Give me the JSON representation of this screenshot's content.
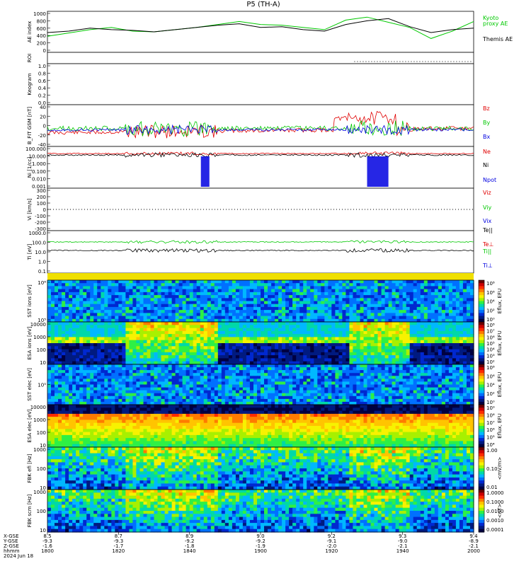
{
  "title": "P5 (TH-A)",
  "colorbar_spec": [
    "#6a0000",
    "#cc0000",
    "#ff2a00",
    "#ff7a00",
    "#ffc400",
    "#f7f200",
    "#a8f000",
    "#2ef045",
    "#00d8a8",
    "#00b8ff",
    "#0070ff",
    "#0028d0",
    "#001a80",
    "#000040"
  ],
  "chart_data": [
    {
      "panel": "ae",
      "type": "line",
      "ylabel": "AE index",
      "yticks": [
        "1000",
        "800",
        "600",
        "400",
        "200",
        "0"
      ],
      "ylim": [
        0,
        1000
      ],
      "series": [
        {
          "name": "Kyoto proxy AE",
          "color": "#00c800",
          "x": [
            0,
            0.05,
            0.1,
            0.15,
            0.2,
            0.25,
            0.3,
            0.35,
            0.4,
            0.45,
            0.5,
            0.55,
            0.6,
            0.65,
            0.7,
            0.75,
            0.8,
            0.85,
            0.9,
            0.95,
            1.0
          ],
          "y": [
            380,
            470,
            560,
            620,
            520,
            500,
            560,
            620,
            700,
            780,
            700,
            680,
            620,
            560,
            820,
            900,
            760,
            620,
            320,
            520,
            780
          ]
        },
        {
          "name": "Themis AE",
          "color": "#000000",
          "x": [
            0,
            0.05,
            0.1,
            0.15,
            0.2,
            0.25,
            0.3,
            0.35,
            0.4,
            0.45,
            0.5,
            0.55,
            0.6,
            0.65,
            0.7,
            0.75,
            0.8,
            0.85,
            0.9,
            0.95,
            1.0
          ],
          "y": [
            480,
            520,
            600,
            560,
            540,
            500,
            560,
            620,
            680,
            720,
            620,
            640,
            560,
            520,
            700,
            800,
            860,
            640,
            480,
            560,
            600
          ]
        }
      ],
      "legend_right": [
        {
          "text": "Kyoto",
          "color": "#00c800"
        },
        {
          "text": "proxy AE",
          "color": "#00c800"
        },
        {
          "text": "Themis AE",
          "color": "#000000"
        }
      ]
    },
    {
      "panel": "roi",
      "type": "line",
      "ylabel": "ROI",
      "yticks": [],
      "dotted_from": 0.72
    },
    {
      "panel": "keogram",
      "type": "line",
      "ylabel": "Keogram",
      "yticks": [
        "1.0",
        "0.8",
        "0.6",
        "0.4",
        "0.2",
        "0.0"
      ],
      "ylim": [
        0,
        1
      ]
    },
    {
      "panel": "bfield",
      "type": "line",
      "ylabel": "B_FIT GSM [nT]",
      "yticks": [
        "40",
        "20",
        "0",
        "-20",
        "-40"
      ],
      "ylim": [
        -40,
        40
      ],
      "series": [
        {
          "name": "Bz",
          "color": "#e00000"
        },
        {
          "name": "By",
          "color": "#00c800"
        },
        {
          "name": "Bx",
          "color": "#0000e0"
        }
      ]
    },
    {
      "panel": "density",
      "type": "line",
      "ylabel": "Ni [1/cc]",
      "yticks": [
        "100.000",
        "10.000",
        "1.000",
        "0.100",
        "0.010",
        "0.001"
      ],
      "series": [
        {
          "name": "Ne",
          "color": "#e00000"
        },
        {
          "name": "Ni",
          "color": "#000000"
        },
        {
          "name": "Npot",
          "color": "#0000e0"
        }
      ]
    },
    {
      "panel": "velocity",
      "type": "line",
      "ylabel": "Vi [km/s]",
      "yticks": [
        "300",
        "200",
        "100",
        "0",
        "-100",
        "-200",
        "-300"
      ],
      "ylim": [
        -300,
        300
      ],
      "series": [
        {
          "name": "Viz",
          "color": "#e00000"
        },
        {
          "name": "Viy",
          "color": "#00c800"
        },
        {
          "name": "Vix",
          "color": "#0000e0"
        }
      ]
    },
    {
      "panel": "temperature",
      "type": "line",
      "ylabel": "Ti [eV]",
      "yticks": [
        "1000.0",
        "100.0",
        "10.0",
        "1.0",
        "0.1"
      ],
      "series": [
        {
          "name": "Te||",
          "color": "#000000"
        },
        {
          "name": "Te⊥",
          "color": "#e00000"
        },
        {
          "name": "Ti||",
          "color": "#00c800"
        },
        {
          "name": "Ti⊥",
          "color": "#0000e0"
        }
      ]
    },
    {
      "panel": "sst_i",
      "type": "heatmap",
      "ylabel": "SST ions [eV]",
      "yticks": [
        "10⁶",
        "10⁵"
      ],
      "cblabel": "Eflux, EFU",
      "cbticks": [
        "10⁸",
        "10⁶",
        "10⁴",
        "10²",
        "10⁰"
      ]
    },
    {
      "panel": "esa_i",
      "type": "heatmap",
      "ylabel": "ESA ions [eV]",
      "yticks": [
        "10000",
        "1000",
        "100",
        "10"
      ],
      "cblabel": "Eflux, EFU",
      "cbticks": [
        "10⁸",
        "10⁷",
        "10⁶",
        "10⁵",
        "10⁴",
        "10³",
        "10²"
      ]
    },
    {
      "panel": "sst_e",
      "type": "heatmap",
      "ylabel": "SST elec [eV]",
      "yticks": [
        "10⁵"
      ],
      "cblabel": "Eflux, EFU",
      "cbticks": [
        "10⁸",
        "10⁶",
        "10⁴",
        "10²",
        "10⁰"
      ]
    },
    {
      "panel": "esa_e",
      "type": "heatmap",
      "ylabel": "ESA elec [eV]",
      "yticks": [
        "10000",
        "1000",
        "100",
        "10"
      ],
      "cblabel": "Eflux, EFU",
      "cbticks": [
        "10⁹",
        "10⁸",
        "10⁷",
        "10⁶",
        "10⁵",
        "10⁴"
      ]
    },
    {
      "panel": "fbk_e",
      "type": "heatmap",
      "ylabel": "FBK efi [Hz]",
      "yticks": [
        "1000",
        "100",
        "10"
      ],
      "cblabel": "<mV/m>",
      "cbticks": [
        "1.00",
        "0.10",
        "0.01"
      ]
    },
    {
      "panel": "fbk_b",
      "type": "heatmap",
      "ylabel": "FBK scm [Hz]",
      "yticks": [
        "1000",
        "100",
        "10"
      ],
      "cblabel": "<nT>",
      "cbticks": [
        "1.0000",
        "0.1000",
        "0.0100",
        "0.0010",
        "0.0001"
      ]
    }
  ],
  "xaxis": {
    "row_labels": [
      "X-GSE",
      "Y-GSE",
      "Z-GSE",
      "hhmm",
      "2024 Jun 18"
    ],
    "columns": [
      [
        "8.5",
        "-9.3",
        "-1.6",
        "1800"
      ],
      [
        "8.7",
        "-9.3",
        "-1.7",
        "1820"
      ],
      [
        "8.9",
        "-9.2",
        "-1.8",
        "1840"
      ],
      [
        "9.0",
        "-9.2",
        "-1.9",
        "1900"
      ],
      [
        "9.2",
        "-9.1",
        "-2.0",
        "1920"
      ],
      [
        "9.3",
        "-9.0",
        "-2.1",
        "1940"
      ],
      [
        "9.4",
        "-8.9",
        "-2.1",
        "2000"
      ]
    ]
  }
}
